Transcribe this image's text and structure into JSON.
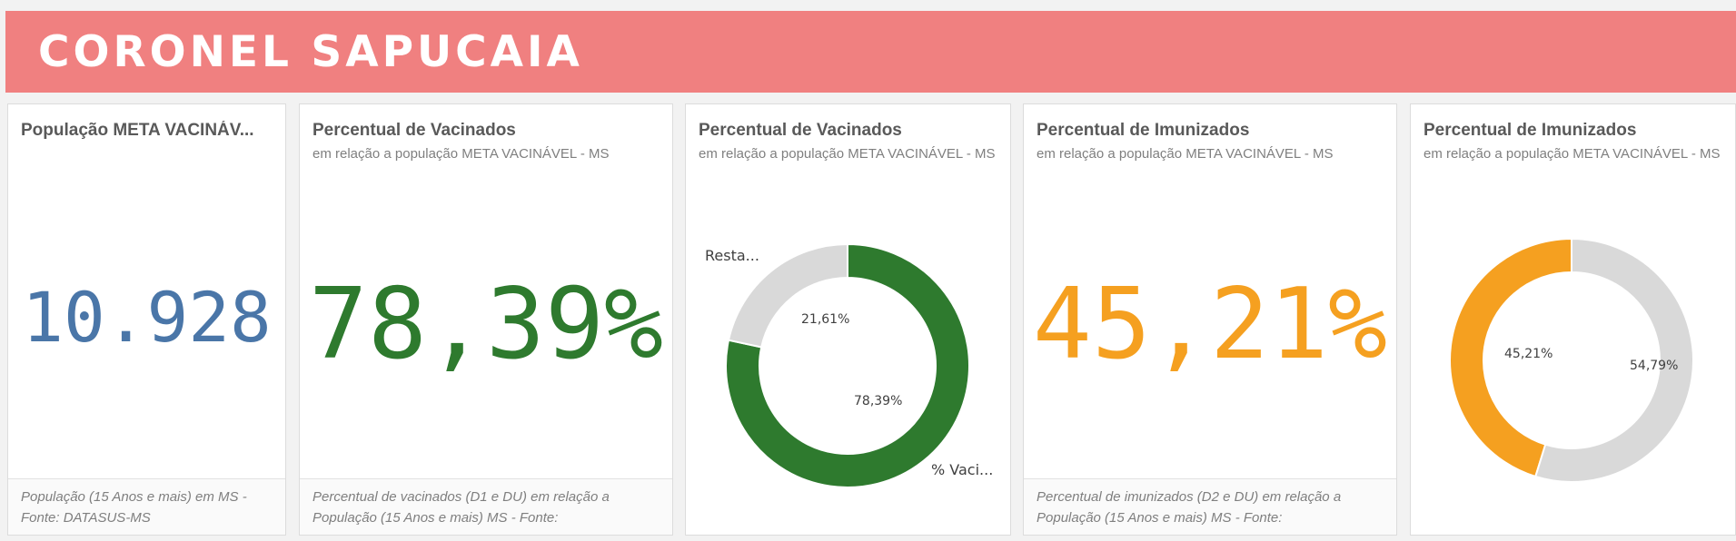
{
  "banner": {
    "title": "CORONEL SAPUCAIA"
  },
  "colors": {
    "banner": "#f08080",
    "blue": "#4a76a8",
    "green": "#2e7a2e",
    "orange": "#f5a020",
    "gray": "#d9d9d9"
  },
  "cards": [
    {
      "title": "População META VACINÁV...",
      "subtitle": "",
      "kpi": "10.928",
      "kpi_color": "#4a76a8",
      "footnote": "População (15 Anos e mais) em MS - Fonte: DATASUS-MS"
    },
    {
      "title": "Percentual de Vacinados",
      "subtitle": "em relação a população META VACINÁVEL - MS",
      "kpi": "78,39%",
      "kpi_color": "#2e7a2e",
      "footnote": "Percentual de vacinados (D1 e DU) em relação a População (15 Anos e mais) MS - Fonte:"
    },
    {
      "title": "Percentual de Vacinados",
      "subtitle": "em relação a população META VACINÁVEL - MS"
    },
    {
      "title": "Percentual de Imunizados",
      "subtitle": "em relação a população META VACINÁVEL - MS",
      "kpi": "45,21%",
      "kpi_color": "#f5a020",
      "footnote": "Percentual de imunizados (D2 e DU) em relação a População (15 Anos e mais) MS - Fonte:"
    },
    {
      "title": "Percentual de Imunizados",
      "subtitle": "em relação a população META VACINÁVEL - MS"
    }
  ],
  "chart_data": [
    {
      "type": "pie",
      "donut": true,
      "categories": [
        "% Vaci...",
        "Resta..."
      ],
      "values": [
        78.39,
        21.61
      ],
      "value_labels": [
        "78,39%",
        "21,61%"
      ],
      "colors": [
        "#2e7a2e",
        "#d9d9d9"
      ],
      "start": "top",
      "direction": "clockwise"
    },
    {
      "type": "pie",
      "donut": true,
      "categories": [
        "",
        ""
      ],
      "values": [
        45.21,
        54.79
      ],
      "value_labels": [
        "45,21%",
        "54,79%"
      ],
      "colors": [
        "#f5a020",
        "#d9d9d9"
      ],
      "start": "top",
      "direction": "counterclockwise"
    }
  ]
}
